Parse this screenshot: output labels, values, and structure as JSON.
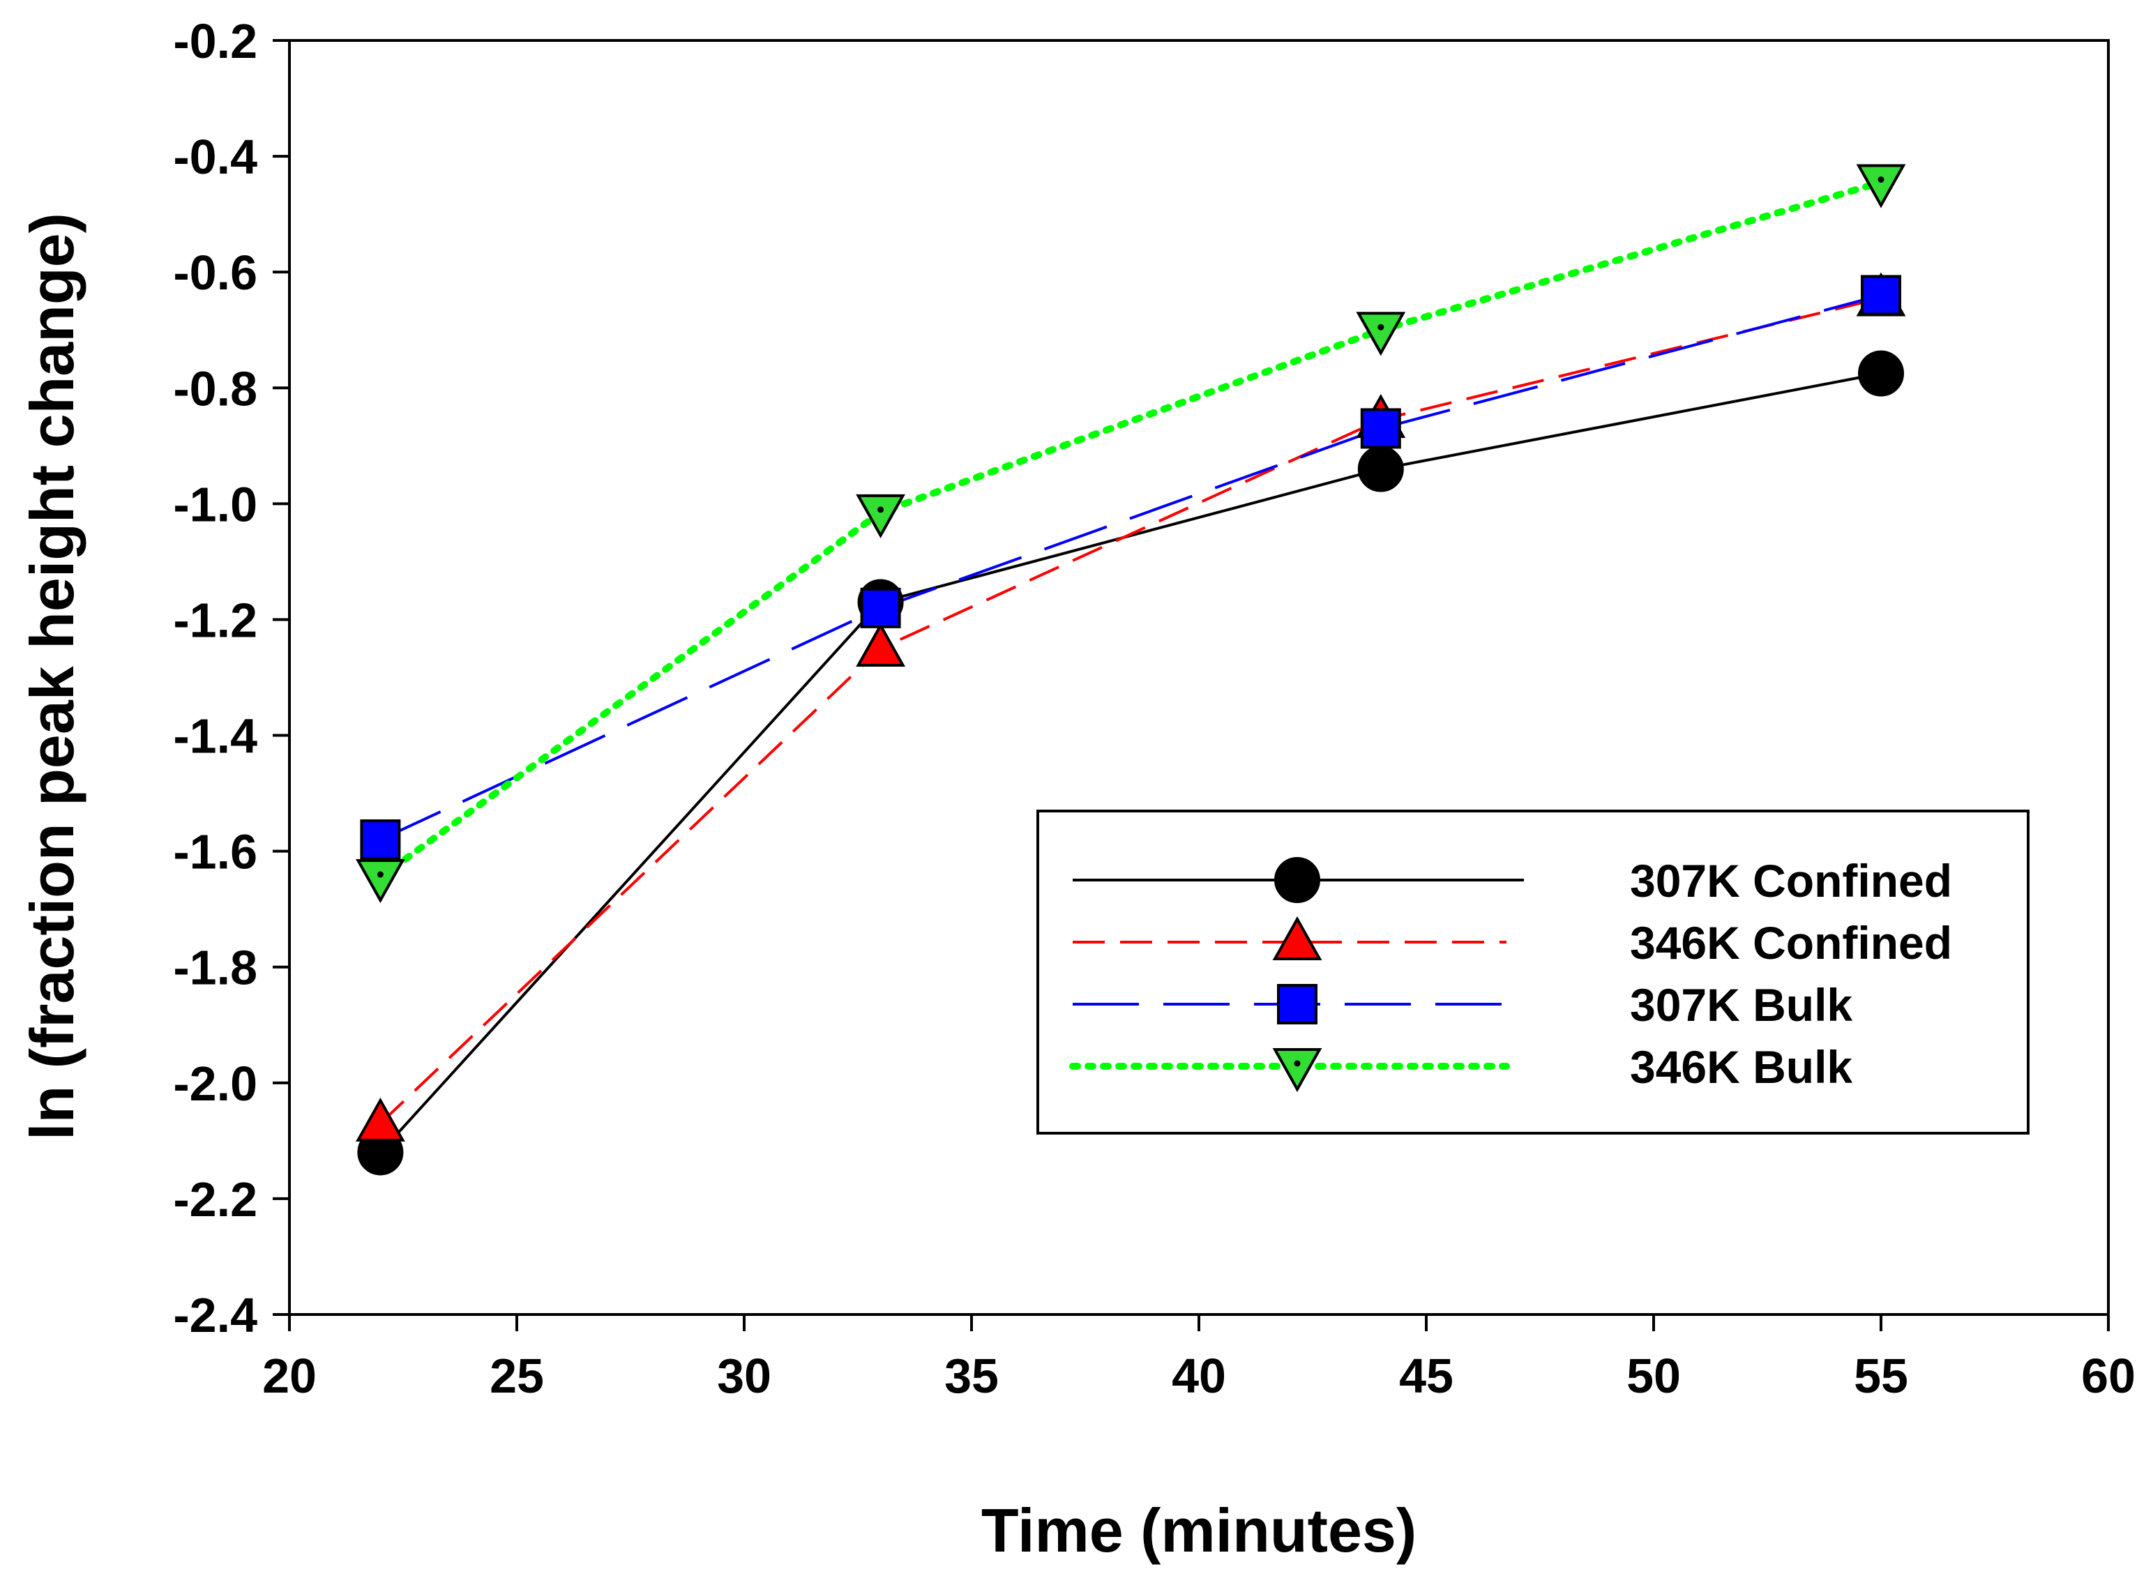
{
  "chart_data": {
    "type": "line",
    "title": "",
    "xlabel": "Time (minutes)",
    "ylabel": "ln (fraction peak height change)",
    "xlim": [
      20,
      60
    ],
    "ylim": [
      -2.4,
      -0.2
    ],
    "xticks": [
      20,
      25,
      30,
      35,
      40,
      45,
      50,
      55,
      60
    ],
    "yticks": [
      -2.4,
      -2.2,
      -2.0,
      -1.8,
      -1.6,
      -1.4,
      -1.2,
      -1.0,
      -0.8,
      -0.6,
      -0.4,
      -0.2
    ],
    "xtick_labels": [
      "20",
      "25",
      "30",
      "35",
      "40",
      "45",
      "50",
      "55",
      "60"
    ],
    "ytick_labels": [
      "-2.4",
      "-2.2",
      "-2.0",
      "-1.8",
      "-1.6",
      "-1.4",
      "-1.2",
      "-1.0",
      "-0.8",
      "-0.6",
      "-0.4",
      "-0.2"
    ],
    "grid": false,
    "legend_position": "center-right",
    "x": [
      22,
      33,
      44,
      55
    ],
    "series": [
      {
        "name": "307K Confined",
        "values": [
          -2.12,
          -1.17,
          -0.94,
          -0.775
        ],
        "color": "#000000",
        "line_style": "solid",
        "marker": "circle",
        "marker_fill": "#000000"
      },
      {
        "name": "346K Confined",
        "values": [
          -2.07,
          -1.25,
          -0.855,
          -0.645
        ],
        "color": "#ff0000",
        "line_style": "dashed",
        "marker": "triangle-up",
        "marker_fill": "#ff0000"
      },
      {
        "name": "307K Bulk",
        "values": [
          -1.58,
          -1.18,
          -0.87,
          -0.64
        ],
        "color": "#0000ff",
        "line_style": "long-dashed",
        "marker": "square",
        "marker_fill": "#0000ff"
      },
      {
        "name": "346K Bulk",
        "values": [
          -1.645,
          -1.015,
          -0.7,
          -0.445
        ],
        "color": "#00ff00",
        "line_style": "dotted",
        "marker": "triangle-down",
        "marker_fill": "#33dd33"
      }
    ]
  }
}
